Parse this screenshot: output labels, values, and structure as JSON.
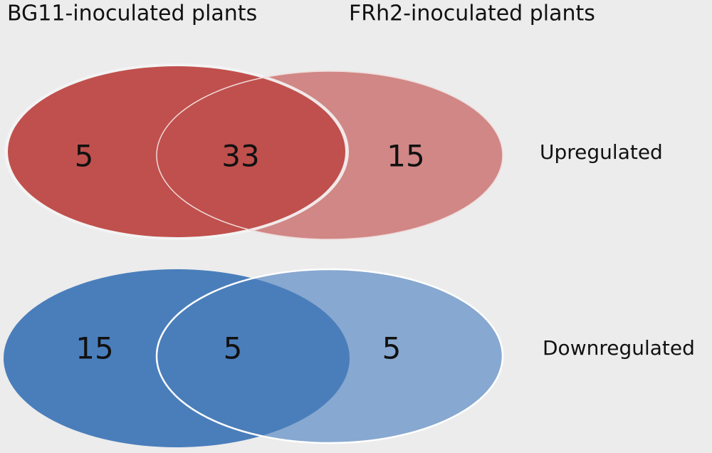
{
  "header": {
    "left": "BG11-inoculated plants",
    "right": "FRh2-inoculated plants"
  },
  "rows": [
    {
      "label": "Upregulated",
      "counts": [
        5,
        33,
        15
      ]
    },
    {
      "label": "Downregulated",
      "counts": [
        15,
        5,
        5
      ]
    }
  ]
}
